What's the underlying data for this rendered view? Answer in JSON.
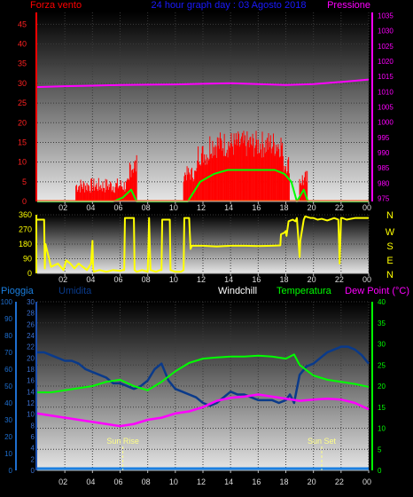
{
  "header": {
    "wind_label": "Forza vento",
    "title": "24 hour graph day : 03 Agosto 2018",
    "pressure_label": "Pressione"
  },
  "legend": {
    "rain": "Pioggia",
    "humidity": "Umidita",
    "windchill": "Windchill",
    "temperature": "Temperatura",
    "dewpoint": "Dew Point (°C)"
  },
  "annotations": {
    "sunrise": "Sun Rise",
    "sunset": "Sun Set",
    "sunrise_hour": 6.2,
    "sunset_hour": 20.6
  },
  "colors": {
    "wind": "#ff0000",
    "wind_avg": "#00ff00",
    "pressure": "#ff00ff",
    "direction": "#ffff00",
    "humidity": "#0a3a8a",
    "temperature": "#00ff00",
    "dewpoint": "#ff00ff",
    "rain": "#1a7fe0",
    "rain_axis": "#1e6fd0",
    "windchill": "#ffffff"
  },
  "chart_data": [
    {
      "type": "line",
      "name": "wind_pressure",
      "x_ticks": [
        "02",
        "04",
        "06",
        "08",
        "10",
        "12",
        "14",
        "16",
        "18",
        "20",
        "22",
        "00"
      ],
      "xlim": [
        0,
        24
      ],
      "y_left_ticks": [
        0,
        5,
        10,
        15,
        20,
        25,
        30,
        35,
        40,
        45
      ],
      "y_left_lim": [
        0,
        48
      ],
      "y_right_ticks": [
        975,
        980,
        985,
        990,
        995,
        1000,
        1005,
        1010,
        1015,
        1020,
        1025,
        1030,
        1035
      ],
      "y_right_lim": [
        974,
        1036
      ],
      "wind_segments": [
        {
          "x0": 2.8,
          "x1": 6.7,
          "base": 2,
          "amp": 4
        },
        {
          "x0": 6.7,
          "x1": 7.2,
          "base": 6,
          "amp": 6
        },
        {
          "x0": 10.6,
          "x1": 11.6,
          "base": 5,
          "amp": 4
        },
        {
          "x0": 11.6,
          "x1": 12.5,
          "base": 9,
          "amp": 6
        },
        {
          "x0": 12.5,
          "x1": 17.8,
          "base": 11,
          "amp": 7
        },
        {
          "x0": 17.8,
          "x1": 18.3,
          "base": 7,
          "amp": 5
        },
        {
          "x0": 19.0,
          "x1": 19.6,
          "base": 3,
          "amp": 5
        }
      ],
      "wind_avg": {
        "x": [
          0,
          5.5,
          6.2,
          6.8,
          7.2,
          10.9,
          11.8,
          12.8,
          13.8,
          15,
          16,
          17.2,
          17.9,
          18.4,
          18.8,
          19.3,
          19.6,
          24
        ],
        "y": [
          0,
          0,
          1,
          3,
          0,
          0,
          5,
          7,
          8,
          8,
          8,
          8,
          7,
          5,
          0,
          3,
          0,
          0
        ]
      },
      "pressure": {
        "x": [
          0,
          2,
          4,
          6,
          8,
          10,
          12,
          14,
          16,
          18,
          20,
          22,
          24
        ],
        "y": [
          1011.5,
          1011.8,
          1012.0,
          1012.2,
          1012.3,
          1012.4,
          1012.6,
          1012.8,
          1012.5,
          1012.2,
          1012.5,
          1013.2,
          1014.0
        ]
      }
    },
    {
      "type": "line",
      "name": "wind_direction",
      "x_ticks": [
        "02",
        "04",
        "06",
        "08",
        "10",
        "12",
        "14",
        "16",
        "18",
        "20",
        "22",
        "00"
      ],
      "xlim": [
        0,
        24
      ],
      "y_left_ticks": [
        0,
        90,
        180,
        270,
        360
      ],
      "y_left_lim": [
        0,
        360
      ],
      "y_right_ticks": [
        "N",
        "W",
        "S",
        "E",
        "N"
      ],
      "direction": {
        "x": [
          0,
          0.2,
          0.4,
          0.5,
          0.55,
          0.6,
          1.0,
          1.5,
          1.9,
          2.1,
          2.4,
          2.7,
          3.0,
          3.3,
          3.6,
          3.9,
          4.0,
          4.05,
          4.1,
          4.5,
          5.0,
          5.5,
          6.0,
          6.2,
          6.3,
          6.35,
          6.9,
          7.0,
          7.05,
          7.2,
          7.6,
          8.0,
          8.1,
          8.2,
          8.6,
          8.9,
          9.0,
          9.05,
          9.6,
          9.65,
          10.0,
          10.4,
          10.6,
          10.65,
          10.7,
          11.0,
          11.1,
          11.2,
          12,
          13,
          14,
          15,
          16,
          17,
          17.6,
          17.65,
          17.9,
          18.0,
          18.05,
          18.2,
          18.5,
          18.7,
          18.8,
          19.0,
          19.05,
          19.3,
          19.4,
          19.8,
          20.0,
          20.3,
          20.6,
          21.0,
          21.5,
          21.8,
          21.9,
          22.0,
          22.1,
          22.4,
          23.0,
          23.5,
          24
        ],
        "y": [
          330,
          330,
          330,
          330,
          30,
          180,
          40,
          60,
          20,
          80,
          60,
          30,
          60,
          40,
          20,
          60,
          200,
          30,
          10,
          20,
          10,
          20,
          15,
          20,
          20,
          340,
          340,
          340,
          20,
          10,
          20,
          10,
          340,
          20,
          10,
          20,
          20,
          330,
          330,
          20,
          10,
          10,
          20,
          340,
          340,
          340,
          150,
          170,
          170,
          165,
          170,
          170,
          168,
          170,
          172,
          240,
          250,
          260,
          230,
          320,
          330,
          320,
          340,
          100,
          200,
          330,
          350,
          340,
          340,
          330,
          335,
          325,
          340,
          330,
          60,
          340,
          340,
          330,
          340,
          340,
          340
        ]
      }
    },
    {
      "type": "line",
      "name": "temp_humidity_rain",
      "x_ticks": [
        "02",
        "04",
        "06",
        "08",
        "10",
        "12",
        "14",
        "16",
        "18",
        "20",
        "22",
        "00"
      ],
      "xlim": [
        0,
        24
      ],
      "rain_ticks": [
        0,
        10,
        20,
        30,
        40,
        50,
        60,
        70,
        80,
        90,
        100
      ],
      "rain_lim": [
        0,
        100
      ],
      "left_ticks": [
        0,
        2,
        4,
        6,
        8,
        10,
        12,
        14,
        16,
        18,
        20,
        22,
        24,
        26,
        28,
        30
      ],
      "left_lim": [
        0,
        30
      ],
      "right_ticks": [
        0,
        5,
        10,
        15,
        20,
        25,
        30,
        35,
        40
      ],
      "right_lim": [
        0,
        40
      ],
      "humidity": {
        "x": [
          0,
          0.5,
          1,
          1.5,
          2,
          2.5,
          3,
          3.5,
          4,
          4.5,
          5,
          5.5,
          6,
          6.5,
          7,
          7.5,
          8,
          8.5,
          9,
          9.5,
          10,
          10.5,
          11,
          11.5,
          12,
          12.5,
          13,
          13.5,
          14,
          14.5,
          15,
          15.5,
          16,
          16.5,
          17,
          17.5,
          18,
          18.3,
          18.6,
          19,
          19.5,
          20,
          20.5,
          21,
          21.5,
          22,
          22.5,
          23,
          23.5,
          24
        ],
        "y": [
          21,
          21,
          20.5,
          20,
          19.5,
          19.5,
          19,
          18,
          17.5,
          17,
          16.5,
          15.5,
          15.5,
          15,
          14.5,
          15,
          16,
          18,
          19,
          16,
          14.5,
          14,
          13.5,
          13,
          12,
          11.5,
          12,
          13,
          14,
          13.5,
          13.5,
          13,
          12.5,
          12.5,
          12.5,
          12,
          12.5,
          13.5,
          12,
          17,
          18.5,
          19,
          20,
          21,
          21.5,
          22,
          22,
          21.5,
          20.5,
          19
        ]
      },
      "temperature": {
        "x": [
          0,
          1,
          2,
          3,
          4,
          5,
          6,
          7,
          8,
          9,
          10,
          11,
          12,
          13,
          14,
          15,
          16,
          17,
          18,
          18.6,
          19,
          20,
          21,
          22,
          23,
          24
        ],
        "y": [
          18.5,
          18.5,
          19,
          19.5,
          20,
          21,
          21.5,
          20,
          19,
          21,
          23.5,
          25.5,
          26.5,
          26.8,
          27,
          27,
          27.2,
          27,
          26.5,
          27.5,
          25,
          22.5,
          21.5,
          21,
          20.5,
          19.8
        ]
      },
      "dewpoint": {
        "x": [
          0,
          1,
          2,
          3,
          4,
          5,
          6,
          7,
          8,
          9,
          10,
          11,
          12,
          13,
          14,
          15,
          16,
          17,
          18,
          19,
          20,
          21,
          22,
          23,
          24
        ],
        "y": [
          13.5,
          13,
          12.5,
          12,
          11.5,
          11,
          10.5,
          11,
          12,
          12.5,
          13.5,
          14,
          15,
          16.5,
          17.2,
          17.5,
          18,
          17.5,
          17,
          16.5,
          16.8,
          17,
          16.8,
          16,
          14.5
        ]
      },
      "rain": {
        "x": [
          0,
          24
        ],
        "y": [
          0,
          0
        ]
      }
    }
  ]
}
